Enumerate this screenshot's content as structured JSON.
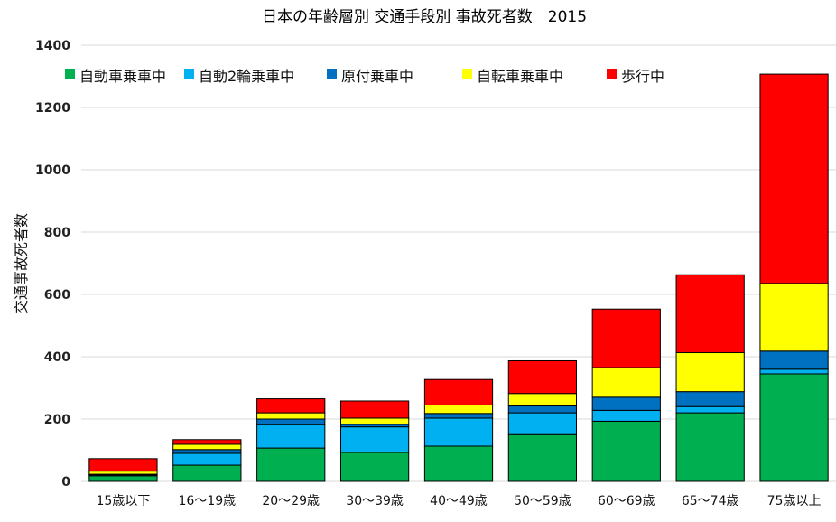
{
  "chart_data": {
    "type": "bar",
    "stacked": true,
    "title": "日本の年齢層別 交通手段別 事故死者数　2015",
    "xlabel": "",
    "ylabel": "交通事故死者数",
    "ylim": [
      0,
      1400
    ],
    "yticks": [
      0,
      200,
      400,
      600,
      800,
      1000,
      1200,
      1400
    ],
    "grid": true,
    "legend_position": "top",
    "categories": [
      "15歳以下",
      "16～19歳",
      "20～29歳",
      "30～39歳",
      "40～49歳",
      "50～59歳",
      "60～69歳",
      "65～74歳",
      "75歳以上"
    ],
    "series": [
      {
        "name": "自動車乗車中",
        "color": "#00b050",
        "values": [
          18,
          52,
          107,
          93,
          113,
          150,
          193,
          220,
          345
        ]
      },
      {
        "name": "自動2輪乗車中",
        "color": "#00b0f0",
        "values": [
          3,
          38,
          75,
          82,
          90,
          70,
          35,
          20,
          15
        ]
      },
      {
        "name": "原付乗車中",
        "color": "#0070c0",
        "values": [
          2,
          12,
          18,
          8,
          15,
          22,
          42,
          48,
          58
        ]
      },
      {
        "name": "自転車乗車中",
        "color": "#ffff00",
        "values": [
          10,
          17,
          20,
          20,
          27,
          40,
          95,
          125,
          217
        ]
      },
      {
        "name": "歩行中",
        "color": "#ff0000",
        "values": [
          40,
          15,
          45,
          55,
          82,
          105,
          188,
          250,
          672
        ]
      }
    ]
  }
}
